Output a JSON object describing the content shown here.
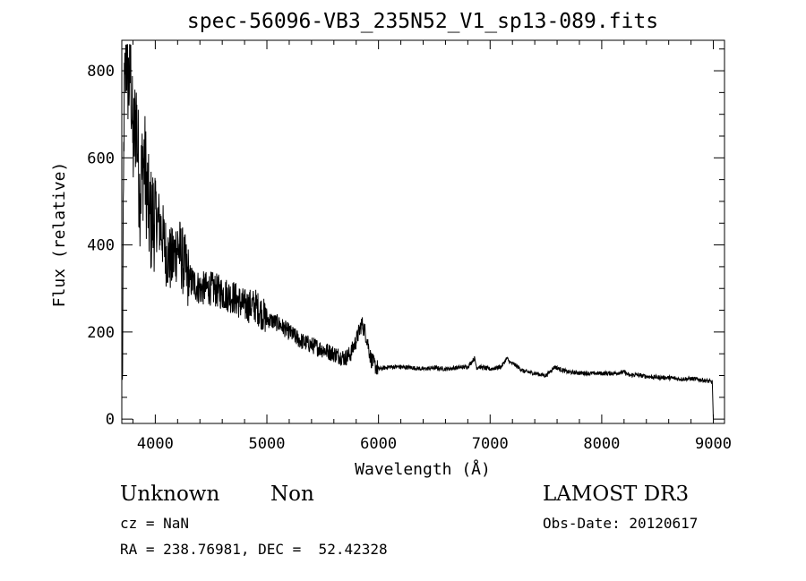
{
  "chart_data": {
    "type": "line",
    "title": "spec-56096-VB3_235N52_V1_sp13-089.fits",
    "xlabel": "Wavelength (Å)",
    "ylabel": "Flux (relative)",
    "xlim": [
      3700,
      9100
    ],
    "ylim": [
      -10,
      870
    ],
    "xticks": [
      4000,
      5000,
      6000,
      7000,
      8000,
      9000
    ],
    "yticks": [
      0,
      200,
      400,
      600,
      800
    ],
    "x_tick_labels": [
      "4000",
      "5000",
      "6000",
      "7000",
      "8000",
      "9000"
    ],
    "y_tick_labels": [
      "0",
      "200",
      "400",
      "600",
      "800"
    ],
    "grid": false,
    "series": [
      {
        "x": [
          3705,
          3720,
          3740,
          3760,
          3780,
          3800,
          3830,
          3860,
          3900,
          3950,
          4000,
          4050,
          4100,
          4150,
          4200,
          4300,
          4400,
          4500,
          4600,
          4700,
          4800,
          4900,
          5000,
          5100,
          5200,
          5300,
          5400,
          5500,
          5600,
          5700,
          5750,
          5800,
          5850,
          5880,
          5900,
          5930,
          5960,
          6000,
          6100,
          6200,
          6300,
          6400,
          6500,
          6600,
          6700,
          6800,
          6860,
          6880,
          6900,
          7000,
          7100,
          7150,
          7180,
          7220,
          7300,
          7400,
          7500,
          7580,
          7620,
          7700,
          7800,
          7900,
          8000,
          8100,
          8200,
          8250,
          8300,
          8400,
          8500,
          8600,
          8700,
          8800,
          8900,
          8990,
          9000
        ],
        "y": [
          50,
          700,
          850,
          770,
          800,
          620,
          700,
          520,
          600,
          450,
          470,
          440,
          380,
          360,
          400,
          320,
          300,
          300,
          290,
          280,
          260,
          260,
          230,
          220,
          200,
          180,
          170,
          160,
          150,
          140,
          150,
          180,
          220,
          200,
          180,
          140,
          125,
          115,
          120,
          120,
          118,
          115,
          118,
          115,
          118,
          120,
          140,
          118,
          120,
          115,
          120,
          140,
          130,
          125,
          110,
          105,
          100,
          120,
          115,
          108,
          106,
          105,
          105,
          105,
          108,
          100,
          102,
          98,
          96,
          95,
          92,
          93,
          90,
          85,
          0
        ]
      }
    ]
  },
  "annotations": {
    "object_class": "Unknown",
    "object_subclass": "Non",
    "survey": "LAMOST DR3",
    "redshift": "cz = NaN",
    "obs_date": "Obs-Date: 20120617",
    "coordinates": "RA = 238.76981, DEC =  52.42328"
  }
}
